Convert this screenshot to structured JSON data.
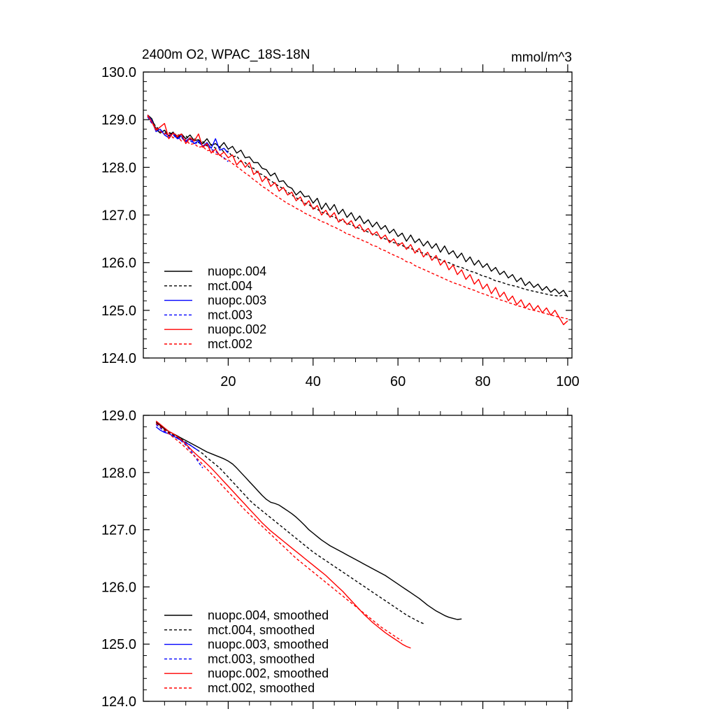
{
  "figure_title": "2400m O2, WPAC_18S-18N",
  "units": "mmol/m^3",
  "colors": {
    "nuopc.004": "#000000",
    "mct.004": "#000000",
    "nuopc.003": "#0000ff",
    "mct.003": "#0000ff",
    "nuopc.002": "#ff0000",
    "mct.002": "#ff0000"
  },
  "chart_data": [
    {
      "type": "line",
      "title": "2400m O2, WPAC_18S-18N",
      "units_label": "mmol/m^3",
      "xlabel": "",
      "ylabel": "",
      "xlim": [
        0,
        101
      ],
      "ylim": [
        124.0,
        130.0
      ],
      "x_ticks": [
        20,
        40,
        60,
        80,
        100
      ],
      "x_tick_labels": [
        "20",
        "40",
        "60",
        "80",
        "100"
      ],
      "y_ticks": [
        124.0,
        125.0,
        126.0,
        127.0,
        128.0,
        129.0,
        130.0
      ],
      "y_tick_labels": [
        "124.0",
        "125.0",
        "126.0",
        "127.0",
        "128.0",
        "129.0",
        "130.0"
      ],
      "grid": false,
      "legend_position": "bottom-left",
      "series": [
        {
          "name": "nuopc.004",
          "dash": false,
          "x_start": 1,
          "values": [
            129.1,
            129.02,
            128.8,
            128.72,
            128.78,
            128.66,
            128.74,
            128.62,
            128.7,
            128.6,
            128.68,
            128.56,
            128.58,
            128.5,
            128.6,
            128.46,
            128.5,
            128.42,
            128.52,
            128.38,
            128.44,
            128.3,
            128.36,
            128.2,
            128.22,
            128.1,
            128.1,
            127.98,
            127.95,
            127.82,
            127.88,
            127.7,
            127.72,
            127.6,
            127.56,
            127.42,
            127.5,
            127.38,
            127.4,
            127.25,
            127.35,
            127.12,
            127.25,
            127.1,
            127.22,
            127.02,
            127.12,
            126.95,
            127.05,
            126.88,
            126.98,
            126.82,
            126.9,
            126.75,
            126.85,
            126.7,
            126.78,
            126.62,
            126.7,
            126.55,
            126.62,
            126.45,
            126.58,
            126.42,
            126.5,
            126.35,
            126.45,
            126.3,
            126.4,
            126.22,
            126.35,
            126.18,
            126.25,
            126.1,
            126.2,
            126.02,
            126.12,
            125.95,
            126.05,
            125.9,
            125.98,
            125.82,
            125.9,
            125.75,
            125.82,
            125.68,
            125.75,
            125.6,
            125.68,
            125.52,
            125.6,
            125.48,
            125.55,
            125.42,
            125.5,
            125.38,
            125.45,
            125.35,
            125.42,
            125.28
          ]
        },
        {
          "name": "mct.004",
          "dash": true,
          "x_start": 1,
          "values": [
            129.08,
            128.98,
            128.85,
            128.78,
            128.72,
            128.74,
            128.68,
            128.7,
            128.62,
            128.66,
            128.58,
            128.6,
            128.52,
            128.54,
            128.45,
            128.48,
            128.4,
            128.42,
            128.32,
            128.34,
            128.22,
            128.24,
            128.12,
            128.1,
            128.0,
            127.98,
            127.88,
            127.85,
            127.78,
            127.72,
            127.66,
            127.6,
            127.55,
            127.48,
            127.42,
            127.36,
            127.32,
            127.25,
            127.22,
            127.15,
            127.12,
            127.06,
            127.04,
            126.98,
            126.96,
            126.9,
            126.88,
            126.82,
            126.8,
            126.75,
            126.72,
            126.68,
            126.64,
            126.6,
            126.58,
            126.52,
            126.5,
            126.46,
            126.42,
            126.4,
            126.36,
            126.32,
            126.3,
            126.26,
            126.22,
            126.2,
            126.16,
            126.12,
            126.1,
            126.06,
            126.02,
            126.0,
            125.96,
            125.92,
            125.9,
            125.86,
            125.82,
            125.8,
            125.76,
            125.72,
            125.7,
            125.66,
            125.62,
            125.6,
            125.57,
            125.54,
            125.52,
            125.5,
            125.47,
            125.44,
            125.42,
            125.4,
            125.38,
            125.36,
            125.34,
            125.32,
            125.31,
            125.3,
            125.32,
            125.3
          ]
        },
        {
          "name": "nuopc.003",
          "dash": false,
          "x_start": 1,
          "values": [
            129.1,
            128.98,
            128.75,
            128.8,
            128.68,
            128.62,
            128.72,
            128.6,
            128.66,
            128.55,
            128.62,
            128.5,
            128.56,
            128.44,
            128.52,
            128.4,
            128.6,
            128.36,
            128.4,
            128.3
          ]
        },
        {
          "name": "mct.003",
          "dash": true,
          "x_start": 1,
          "values": [
            129.06,
            128.92,
            128.82,
            128.76,
            128.72,
            128.66,
            128.68,
            128.6,
            128.62,
            128.54,
            128.56,
            128.5,
            128.52,
            128.46,
            128.46,
            128.38,
            128.34,
            128.26,
            128.2,
            128.12
          ]
        },
        {
          "name": "nuopc.002",
          "dash": false,
          "x_start": 1,
          "values": [
            129.1,
            128.95,
            128.78,
            128.85,
            128.92,
            128.6,
            128.72,
            128.66,
            128.7,
            128.5,
            128.62,
            128.55,
            128.7,
            128.42,
            128.5,
            128.3,
            128.38,
            128.25,
            128.32,
            128.2,
            128.26,
            128.05,
            128.15,
            128.0,
            128.1,
            127.85,
            127.92,
            127.7,
            127.8,
            127.6,
            127.68,
            127.5,
            127.58,
            127.42,
            127.48,
            127.3,
            127.38,
            127.2,
            127.3,
            127.12,
            127.2,
            127.0,
            127.1,
            126.95,
            127.05,
            126.85,
            126.92,
            126.8,
            126.88,
            126.72,
            126.8,
            126.65,
            126.72,
            126.58,
            126.65,
            126.5,
            126.58,
            126.42,
            126.5,
            126.35,
            126.42,
            126.28,
            126.38,
            126.2,
            126.3,
            126.12,
            126.22,
            126.05,
            126.15,
            125.95,
            126.05,
            125.85,
            125.95,
            125.75,
            125.85,
            125.65,
            125.75,
            125.55,
            125.65,
            125.45,
            125.55,
            125.35,
            125.48,
            125.28,
            125.38,
            125.2,
            125.3,
            125.12,
            125.22,
            125.05,
            125.15,
            125.0,
            125.1,
            124.95,
            125.05,
            124.9,
            125.0,
            124.85,
            124.7,
            124.78
          ]
        },
        {
          "name": "mct.002",
          "dash": true,
          "x_start": 1,
          "values": [
            129.08,
            128.95,
            128.82,
            128.75,
            128.7,
            128.72,
            128.62,
            128.65,
            128.55,
            128.58,
            128.48,
            128.5,
            128.42,
            128.44,
            128.35,
            128.36,
            128.28,
            128.26,
            128.18,
            128.16,
            128.08,
            128.02,
            127.95,
            127.88,
            127.82,
            127.74,
            127.68,
            127.6,
            127.55,
            127.48,
            127.42,
            127.36,
            127.3,
            127.24,
            127.2,
            127.14,
            127.1,
            127.04,
            127.0,
            126.95,
            126.92,
            126.86,
            126.84,
            126.78,
            126.75,
            126.7,
            126.66,
            126.6,
            126.58,
            126.52,
            126.5,
            126.45,
            126.42,
            126.36,
            126.34,
            126.28,
            126.25,
            126.2,
            126.16,
            126.12,
            126.08,
            126.02,
            126.0,
            125.94,
            125.9,
            125.86,
            125.82,
            125.78,
            125.74,
            125.7,
            125.66,
            125.62,
            125.58,
            125.55,
            125.52,
            125.48,
            125.45,
            125.42,
            125.38,
            125.35,
            125.32,
            125.28,
            125.26,
            125.22,
            125.2,
            125.16,
            125.14,
            125.1,
            125.08,
            125.05,
            125.02,
            125.0,
            124.98,
            124.95,
            124.93,
            124.9,
            124.88,
            124.86,
            124.84,
            124.82
          ]
        }
      ],
      "legend": [
        "nuopc.004",
        "mct.004",
        "nuopc.003",
        "mct.003",
        "nuopc.002",
        "mct.002"
      ]
    },
    {
      "type": "line",
      "title": "",
      "xlabel": "",
      "ylabel": "",
      "xlim": [
        0,
        101
      ],
      "ylim": [
        124.0,
        129.0
      ],
      "x_ticks": [
        20,
        40,
        60,
        80,
        100
      ],
      "x_tick_labels": [],
      "y_ticks": [
        124.0,
        125.0,
        126.0,
        127.0,
        128.0,
        129.0
      ],
      "y_tick_labels": [
        "124.0",
        "125.0",
        "126.0",
        "127.0",
        "128.0",
        "129.0"
      ],
      "grid": false,
      "legend_position": "bottom-left",
      "series": [
        {
          "name": "nuopc.004, smoothed",
          "dash": false,
          "x_start": 3,
          "values": [
            128.88,
            128.82,
            128.76,
            128.72,
            128.68,
            128.64,
            128.6,
            128.56,
            128.52,
            128.48,
            128.44,
            128.4,
            128.36,
            128.33,
            128.3,
            128.27,
            128.24,
            128.2,
            128.15,
            128.08,
            128.0,
            127.92,
            127.84,
            127.76,
            127.68,
            127.6,
            127.53,
            127.48,
            127.46,
            127.43,
            127.38,
            127.33,
            127.28,
            127.22,
            127.15,
            127.08,
            127.0,
            126.94,
            126.88,
            126.82,
            126.77,
            126.72,
            126.68,
            126.64,
            126.6,
            126.56,
            126.52,
            126.48,
            126.44,
            126.4,
            126.36,
            126.32,
            126.28,
            126.24,
            126.2,
            126.15,
            126.1,
            126.05,
            126.0,
            125.95,
            125.9,
            125.85,
            125.8,
            125.74,
            125.68,
            125.63,
            125.58,
            125.54,
            125.5,
            125.47,
            125.45,
            125.43,
            125.44
          ]
        },
        {
          "name": "mct.004, smoothed",
          "dash": true,
          "x_start": 3,
          "values": [
            128.86,
            128.8,
            128.74,
            128.7,
            128.66,
            128.62,
            128.58,
            128.53,
            128.48,
            128.43,
            128.38,
            128.33,
            128.26,
            128.2,
            128.14,
            128.08,
            128.0,
            127.92,
            127.84,
            127.76,
            127.68,
            127.6,
            127.52,
            127.45,
            127.39,
            127.33,
            127.27,
            127.21,
            127.15,
            127.09,
            127.03,
            126.97,
            126.91,
            126.85,
            126.79,
            126.73,
            126.67,
            126.61,
            126.56,
            126.51,
            126.46,
            126.41,
            126.36,
            126.31,
            126.26,
            126.21,
            126.16,
            126.11,
            126.06,
            126.01,
            125.96,
            125.91,
            125.86,
            125.81,
            125.76,
            125.71,
            125.66,
            125.61,
            125.56,
            125.51,
            125.47,
            125.43,
            125.39,
            125.36
          ]
        },
        {
          "name": "nuopc.003, smoothed",
          "dash": false,
          "x_start": 3,
          "values": [
            128.8,
            128.74,
            128.7,
            128.68,
            128.64,
            128.6,
            128.56,
            128.52,
            128.48,
            128.43,
            128.38
          ]
        },
        {
          "name": "mct.003, smoothed",
          "dash": true,
          "x_start": 3,
          "values": [
            128.84,
            128.78,
            128.72,
            128.68,
            128.64,
            128.6,
            128.55,
            128.48,
            128.4,
            128.3,
            128.18,
            128.08
          ]
        },
        {
          "name": "nuopc.002, smoothed",
          "dash": false,
          "x_start": 3,
          "values": [
            128.9,
            128.84,
            128.78,
            128.72,
            128.68,
            128.63,
            128.57,
            128.5,
            128.42,
            128.35,
            128.28,
            128.22,
            128.15,
            128.08,
            128.0,
            127.92,
            127.84,
            127.76,
            127.68,
            127.6,
            127.52,
            127.44,
            127.36,
            127.28,
            127.2,
            127.12,
            127.05,
            126.98,
            126.92,
            126.86,
            126.8,
            126.74,
            126.68,
            126.62,
            126.56,
            126.5,
            126.44,
            126.38,
            126.32,
            126.26,
            126.2,
            126.13,
            126.06,
            125.99,
            125.92,
            125.84,
            125.76,
            125.68,
            125.6,
            125.52,
            125.45,
            125.38,
            125.32,
            125.26,
            125.2,
            125.15,
            125.1,
            125.05,
            125.0,
            124.96,
            124.93
          ]
        },
        {
          "name": "mct.002, smoothed",
          "dash": true,
          "x_start": 3,
          "values": [
            128.86,
            128.8,
            128.74,
            128.68,
            128.62,
            128.56,
            128.5,
            128.43,
            128.36,
            128.29,
            128.22,
            128.14,
            128.06,
            127.98,
            127.9,
            127.82,
            127.74,
            127.66,
            127.58,
            127.5,
            127.42,
            127.34,
            127.27,
            127.2,
            127.13,
            127.06,
            126.99,
            126.92,
            126.85,
            126.78,
            126.71,
            126.64,
            126.57,
            126.5,
            126.44,
            126.38,
            126.32,
            126.26,
            126.2,
            126.14,
            126.08,
            126.02,
            125.96,
            125.9,
            125.84,
            125.78,
            125.72,
            125.66,
            125.6,
            125.54,
            125.48,
            125.42,
            125.36,
            125.3,
            125.25,
            125.2,
            125.15,
            125.1,
            125.06
          ]
        }
      ],
      "legend": [
        "nuopc.004, smoothed",
        "mct.004, smoothed",
        "nuopc.003, smoothed",
        "mct.003, smoothed",
        "nuopc.002, smoothed",
        "mct.002, smoothed"
      ]
    }
  ]
}
